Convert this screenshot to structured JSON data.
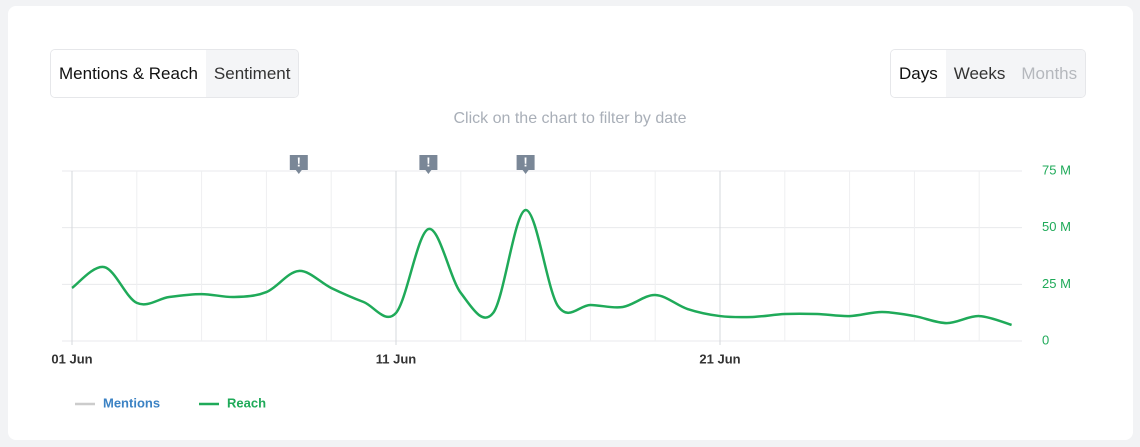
{
  "view_tabs": [
    "Mentions & Reach",
    "Sentiment"
  ],
  "period_tabs": [
    "Days",
    "Weeks",
    "Months"
  ],
  "hint": "Click on the chart to filter by date",
  "chart_data": {
    "type": "line",
    "categories": [
      "01 Jun",
      null,
      null,
      null,
      null,
      null,
      null,
      null,
      null,
      null,
      "11 Jun",
      null,
      null,
      null,
      null,
      null,
      null,
      null,
      null,
      null,
      "21 Jun",
      null,
      null,
      null,
      null,
      null,
      null,
      null,
      null,
      null
    ],
    "series": [
      {
        "name": "Mentions",
        "color": "#cccccc",
        "hidden": true
      },
      {
        "name": "Reach",
        "color": "#1faa59",
        "axis": "y2",
        "values": [
          23.4,
          32.6,
          16.8,
          19.4,
          20.7,
          19.4,
          21.6,
          30.9,
          23.4,
          17.2,
          12.4,
          49.4,
          21.2,
          12.4,
          57.8,
          15.4,
          15.9,
          15,
          20.3,
          14.1,
          11,
          10.6,
          11.9,
          11.9,
          11,
          12.8,
          11,
          7.9,
          11,
          7.1
        ]
      }
    ],
    "y2lim": [
      0,
      75
    ],
    "y2ticks": [
      0,
      {
        "value": 25,
        "label": "25 M"
      },
      {
        "value": 50,
        "label": "50 M"
      },
      {
        "value": 75,
        "label": "75 M"
      }
    ],
    "grid": true,
    "annotations": [
      {
        "index": 7,
        "text": "!"
      },
      {
        "index": 11,
        "text": "!"
      },
      {
        "index": 14,
        "text": "!"
      }
    ]
  }
}
